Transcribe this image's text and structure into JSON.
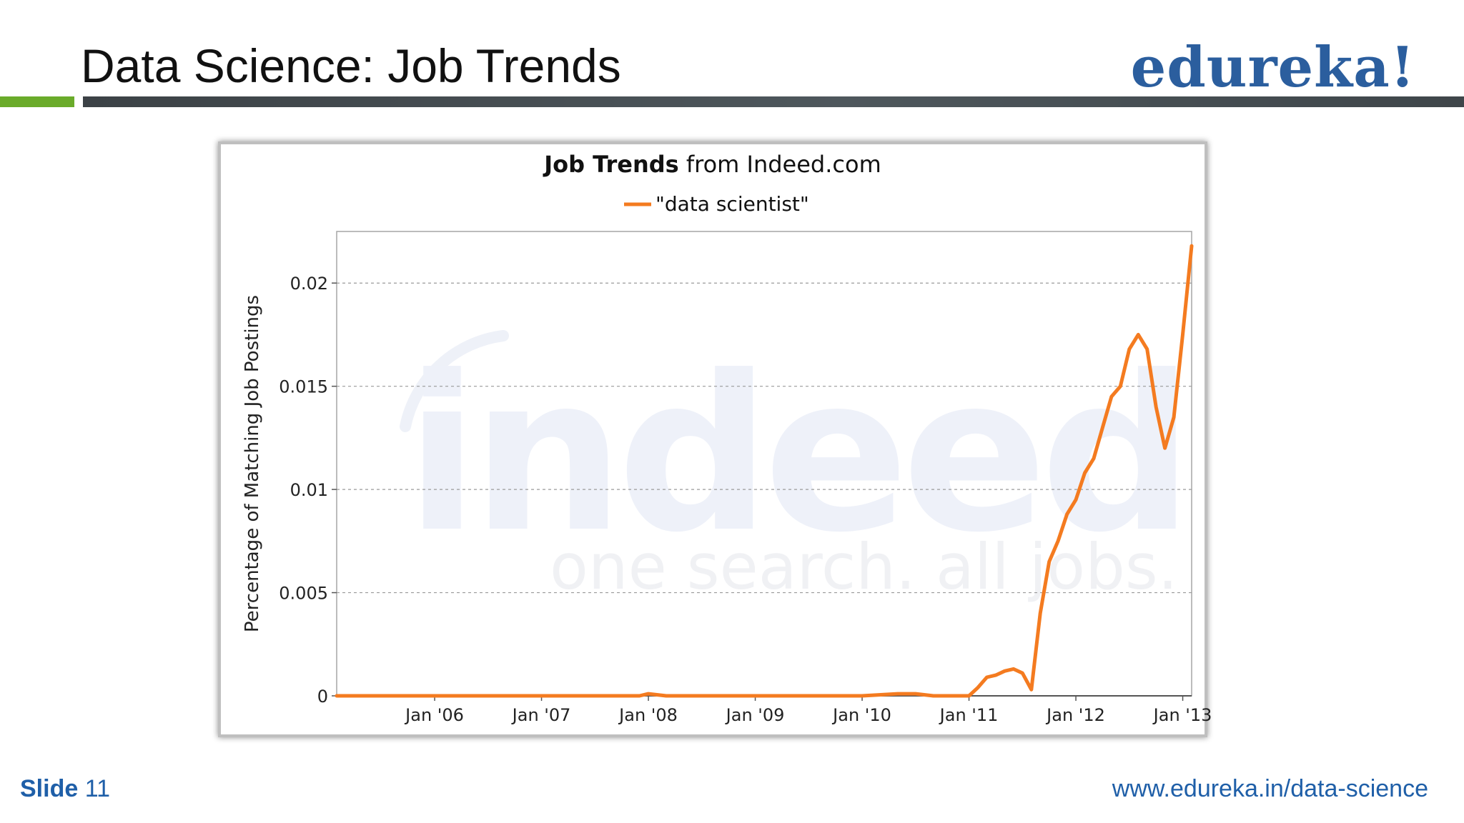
{
  "slide": {
    "title": "Data Science: Job Trends",
    "logo": "edureka!",
    "footer_slide_label": "Slide",
    "footer_slide_number": "11",
    "footer_url": "www.edureka.in/data-science",
    "colors": {
      "accent_green": "#6aab2a",
      "brand_blue": "#2b5e9e",
      "bar_dark": "#4a5257"
    }
  },
  "chart_data": {
    "type": "line",
    "title_bold": "Job Trends",
    "title_rest": " from Indeed.com",
    "watermark": {
      "logo": "indeed",
      "tagline": "one search. all jobs."
    },
    "ylabel": "Percentage of Matching Job Postings",
    "xlabel": "",
    "ylim": [
      0,
      0.0225
    ],
    "xlim": [
      "2005-02",
      "2013-02"
    ],
    "yticks": [
      {
        "value": 0,
        "label": "0"
      },
      {
        "value": 0.005,
        "label": "0.005"
      },
      {
        "value": 0.01,
        "label": "0.01"
      },
      {
        "value": 0.015,
        "label": "0.015"
      },
      {
        "value": 0.02,
        "label": "0.02"
      }
    ],
    "xticks": [
      {
        "value": "2006-01",
        "label": "Jan '06"
      },
      {
        "value": "2007-01",
        "label": "Jan '07"
      },
      {
        "value": "2008-01",
        "label": "Jan '08"
      },
      {
        "value": "2009-01",
        "label": "Jan '09"
      },
      {
        "value": "2010-01",
        "label": "Jan '10"
      },
      {
        "value": "2011-01",
        "label": "Jan '11"
      },
      {
        "value": "2012-01",
        "label": "Jan '12"
      },
      {
        "value": "2013-01",
        "label": "Jan '13"
      }
    ],
    "grid": true,
    "legend_position": "top-center",
    "series": [
      {
        "name": "\"data scientist\"",
        "color": "#f47b20",
        "x": [
          "2005-02",
          "2006-01",
          "2007-01",
          "2007-12",
          "2008-01",
          "2008-03",
          "2009-01",
          "2010-01",
          "2010-05",
          "2010-07",
          "2010-09",
          "2011-01",
          "2011-02",
          "2011-03",
          "2011-04",
          "2011-05",
          "2011-06",
          "2011-07",
          "2011-08",
          "2011-09",
          "2011-10",
          "2011-11",
          "2011-12",
          "2012-01",
          "2012-02",
          "2012-03",
          "2012-04",
          "2012-05",
          "2012-06",
          "2012-07",
          "2012-08",
          "2012-09",
          "2012-10",
          "2012-11",
          "2012-12",
          "2013-01",
          "2013-02"
        ],
        "y": [
          0,
          0,
          0,
          0,
          0.0001,
          0,
          0,
          0,
          0.0001,
          0.0001,
          0,
          0,
          0.0004,
          0.0009,
          0.001,
          0.0012,
          0.0013,
          0.0011,
          0.0003,
          0.004,
          0.0065,
          0.0075,
          0.0088,
          0.0095,
          0.0108,
          0.0115,
          0.013,
          0.0145,
          0.015,
          0.0168,
          0.0175,
          0.0168,
          0.014,
          0.012,
          0.0135,
          0.0175,
          0.0218
        ]
      }
    ]
  }
}
